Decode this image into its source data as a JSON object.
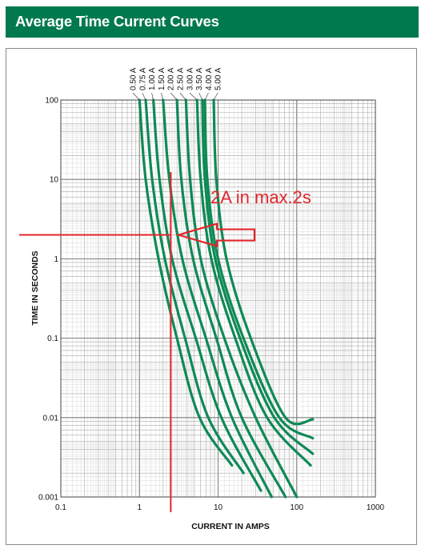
{
  "header": {
    "title": "Average Time Current Curves"
  },
  "colors": {
    "header_bg": "#007a4d",
    "curve": "#0e8a55",
    "annotation": "#e2262b",
    "grid": "#9a9a9a"
  },
  "chart_data": {
    "type": "line",
    "title": "Average Time Current Curves",
    "xlabel": "CURRENT IN AMPS",
    "ylabel": "TIME IN SECONDS",
    "x_scale": "log",
    "y_scale": "log",
    "xlim": [
      0.1,
      1000
    ],
    "ylim": [
      0.001,
      100
    ],
    "x_ticks": [
      "0.1",
      "1",
      "10",
      "100",
      "1000"
    ],
    "y_ticks": [
      "0.001",
      "0.01",
      "0.1",
      "1",
      "10",
      "100"
    ],
    "grid": true,
    "series": [
      {
        "name": "0.50 A",
        "points": [
          [
            1.0,
            100
          ],
          [
            1.2,
            10
          ],
          [
            1.75,
            1
          ],
          [
            3.0,
            0.1
          ],
          [
            5.8,
            0.01
          ],
          [
            15,
            0.0025
          ]
        ]
      },
      {
        "name": "0.75 A",
        "points": [
          [
            1.2,
            100
          ],
          [
            1.45,
            10
          ],
          [
            2.1,
            1
          ],
          [
            3.8,
            0.1
          ],
          [
            7.5,
            0.01
          ],
          [
            21,
            0.002
          ]
        ]
      },
      {
        "name": "1.00 A",
        "points": [
          [
            1.5,
            100
          ],
          [
            1.8,
            10
          ],
          [
            2.6,
            1
          ],
          [
            5.2,
            0.1
          ],
          [
            11,
            0.01
          ],
          [
            35,
            0.0012
          ]
        ]
      },
      {
        "name": "1.50 A",
        "points": [
          [
            2.0,
            100
          ],
          [
            2.4,
            10
          ],
          [
            3.5,
            1
          ],
          [
            7.0,
            0.1
          ],
          [
            15,
            0.01
          ],
          [
            48,
            0.001
          ]
        ]
      },
      {
        "name": "2.00 A",
        "points": [
          [
            3.0,
            100
          ],
          [
            3.4,
            10
          ],
          [
            4.8,
            1
          ],
          [
            9.5,
            0.1
          ],
          [
            20,
            0.01
          ],
          [
            72,
            0.001
          ]
        ]
      },
      {
        "name": "2.50 A",
        "points": [
          [
            3.9,
            100
          ],
          [
            4.4,
            10
          ],
          [
            6.0,
            1
          ],
          [
            12,
            0.1
          ],
          [
            30,
            0.01
          ],
          [
            100,
            0.001
          ]
        ]
      },
      {
        "name": "3.00 A",
        "points": [
          [
            5.4,
            100
          ],
          [
            6.0,
            10
          ],
          [
            8.2,
            1
          ],
          [
            16.5,
            0.1
          ],
          [
            42,
            0.01
          ],
          [
            150,
            0.0025
          ]
        ]
      },
      {
        "name": "3.50 A",
        "points": [
          [
            6.3,
            100
          ],
          [
            6.8,
            10
          ],
          [
            9.2,
            1
          ],
          [
            19,
            0.1
          ],
          [
            52,
            0.01
          ],
          [
            160,
            0.0035
          ]
        ]
      },
      {
        "name": "4.00 A",
        "points": [
          [
            6.8,
            100
          ],
          [
            7.3,
            10
          ],
          [
            10,
            1
          ],
          [
            21,
            0.1
          ],
          [
            60,
            0.01
          ],
          [
            160,
            0.0055
          ]
        ]
      },
      {
        "name": "5.00 A",
        "points": [
          [
            8.8,
            100
          ],
          [
            9.5,
            10
          ],
          [
            12.8,
            1
          ],
          [
            26,
            0.1
          ],
          [
            72,
            0.01
          ],
          [
            160,
            0.0095
          ]
        ]
      }
    ],
    "annotations": [
      {
        "text": "2A in max.2s",
        "x": 35,
        "y": 5
      },
      {
        "type": "vertical-line",
        "x": 2.5
      },
      {
        "type": "horizontal-line",
        "y": 2
      }
    ]
  }
}
